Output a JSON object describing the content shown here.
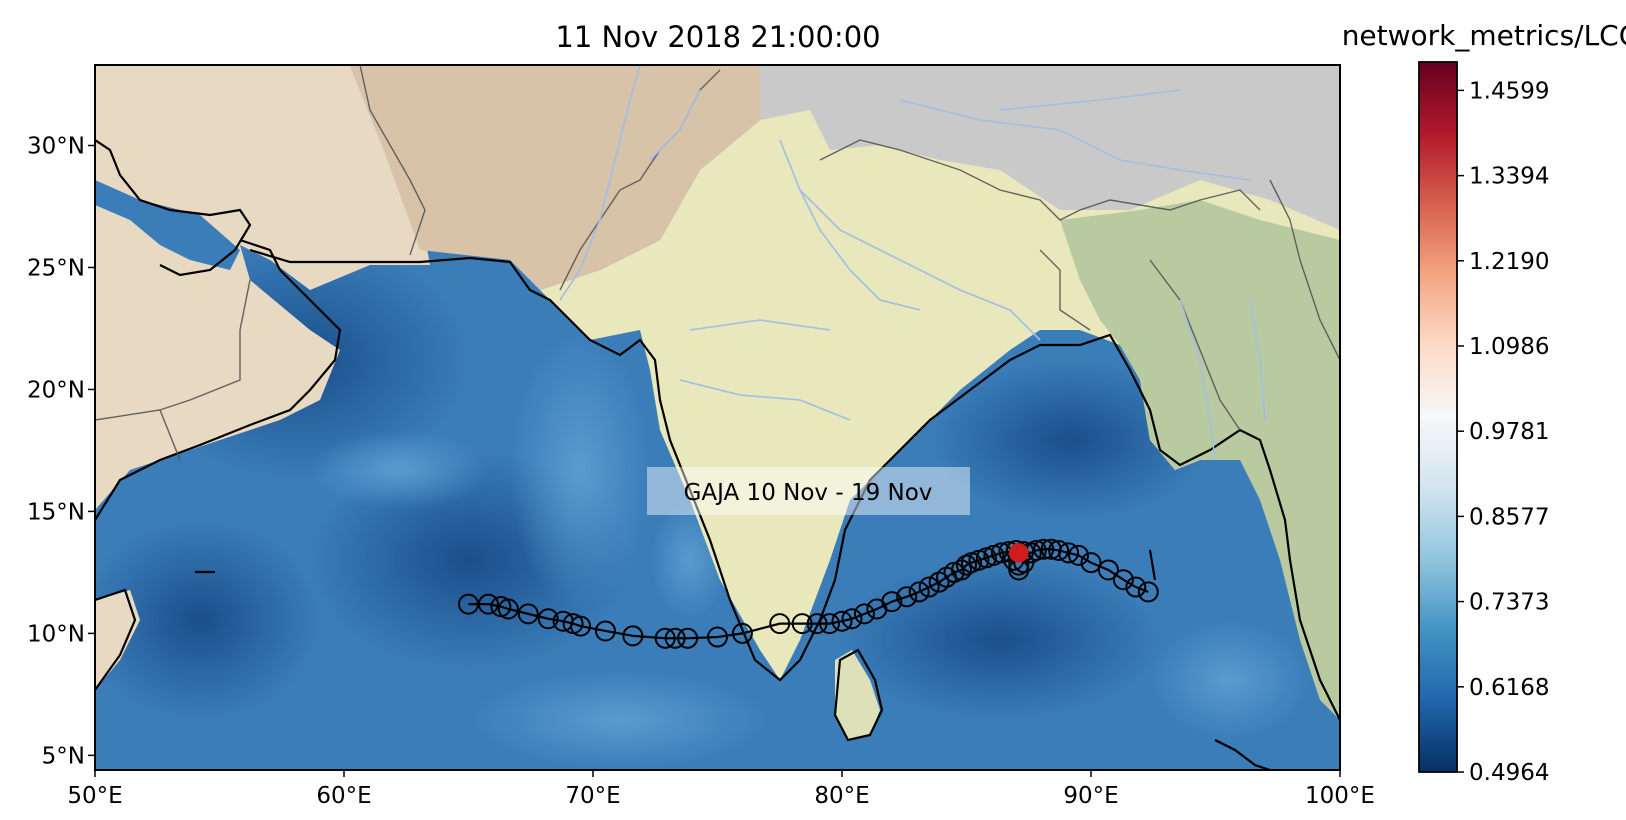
{
  "title": "11 Nov 2018 21:00:00",
  "colorbar": {
    "title": "network_metrics/LCC",
    "min": 0.4964,
    "max": 1.5,
    "ticks": [
      "1.4599",
      "1.3394",
      "1.2190",
      "1.0986",
      "0.9781",
      "0.8577",
      "0.7373",
      "0.6168",
      "0.4964"
    ],
    "tick_values": [
      1.4599,
      1.3394,
      1.219,
      1.0986,
      0.9781,
      0.8577,
      0.7373,
      0.6168,
      0.4964
    ],
    "colors": [
      "#053061",
      "#2166ac",
      "#4393c3",
      "#92c5de",
      "#d1e5f0",
      "#f7f7f7",
      "#fddbc7",
      "#f4a582",
      "#d6604d",
      "#b2182b",
      "#67001f"
    ]
  },
  "map": {
    "lon_range": [
      50,
      100
    ],
    "lat_range": [
      4.4,
      33.3
    ],
    "xticks": [
      "50°E",
      "60°E",
      "70°E",
      "80°E",
      "90°E",
      "100°E"
    ],
    "xtick_values": [
      50,
      60,
      70,
      80,
      90,
      100
    ],
    "yticks": [
      "5°N",
      "10°N",
      "15°N",
      "20°N",
      "25°N",
      "30°N"
    ],
    "ytick_values": [
      5,
      10,
      15,
      20,
      25,
      30
    ]
  },
  "annotation": "GAJA 10 Nov - 19 Nov",
  "track": {
    "current_position": [
      87.1,
      13.3
    ],
    "points": [
      [
        65.0,
        11.2
      ],
      [
        65.8,
        11.2
      ],
      [
        66.3,
        11.1
      ],
      [
        66.6,
        11.0
      ],
      [
        67.4,
        10.8
      ],
      [
        68.2,
        10.6
      ],
      [
        68.8,
        10.5
      ],
      [
        69.2,
        10.4
      ],
      [
        69.5,
        10.3
      ],
      [
        70.5,
        10.1
      ],
      [
        71.6,
        9.9
      ],
      [
        72.9,
        9.8
      ],
      [
        73.3,
        9.8
      ],
      [
        73.8,
        9.8
      ],
      [
        75.0,
        9.85
      ],
      [
        76.0,
        10.0
      ],
      [
        77.5,
        10.4
      ],
      [
        78.4,
        10.4
      ],
      [
        79.0,
        10.4
      ],
      [
        79.5,
        10.4
      ],
      [
        80.0,
        10.5
      ],
      [
        80.4,
        10.6
      ],
      [
        80.9,
        10.8
      ],
      [
        81.4,
        11.0
      ],
      [
        82.0,
        11.3
      ],
      [
        82.6,
        11.5
      ],
      [
        83.1,
        11.7
      ],
      [
        83.5,
        11.9
      ],
      [
        83.9,
        12.1
      ],
      [
        84.2,
        12.3
      ],
      [
        84.5,
        12.5
      ],
      [
        84.8,
        12.6
      ],
      [
        85.0,
        12.8
      ],
      [
        85.2,
        12.9
      ],
      [
        85.5,
        13.0
      ],
      [
        85.8,
        13.1
      ],
      [
        86.1,
        13.2
      ],
      [
        86.4,
        13.3
      ],
      [
        86.7,
        13.35
      ],
      [
        87.0,
        13.4
      ],
      [
        87.3,
        13.35
      ],
      [
        87.6,
        13.3
      ],
      [
        87.8,
        13.4
      ],
      [
        88.1,
        13.45
      ],
      [
        88.4,
        13.45
      ],
      [
        88.7,
        13.4
      ],
      [
        89.1,
        13.3
      ],
      [
        89.5,
        13.2
      ],
      [
        90.0,
        12.9
      ],
      [
        90.7,
        12.6
      ],
      [
        91.3,
        12.2
      ],
      [
        91.8,
        11.9
      ],
      [
        92.3,
        11.7
      ],
      [
        87.1,
        12.8
      ],
      [
        87.1,
        12.6
      ],
      [
        86.9,
        13.0
      ],
      [
        87.3,
        12.9
      ]
    ]
  }
}
